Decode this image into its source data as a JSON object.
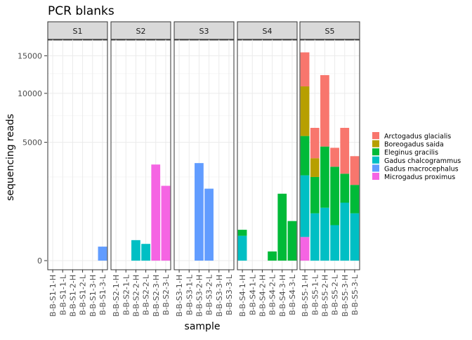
{
  "chart_data": {
    "type": "bar",
    "stacked": true,
    "title": "PCR blanks",
    "xlabel": "sample",
    "ylabel": "sequencing reads",
    "y_scale": "sqrt",
    "ylim": [
      0,
      17500
    ],
    "yticks": [
      0,
      5000,
      10000,
      15000
    ],
    "ytick_labels": [
      "0",
      "5000",
      "10000",
      "15000"
    ],
    "grid": true,
    "legend_position": "right",
    "legend": [
      {
        "name": "Arctogadus glacialis",
        "color": "#F8766D"
      },
      {
        "name": "Boreogadus saida",
        "color": "#B79F00"
      },
      {
        "name": "Eleginus gracilis",
        "color": "#00BA38"
      },
      {
        "name": "Gadus chalcogrammus",
        "color": "#00BFC4"
      },
      {
        "name": "Gadus macrocephalus",
        "color": "#619CFF"
      },
      {
        "name": "Microgadus proximus",
        "color": "#F564E3"
      }
    ],
    "panels": [
      {
        "label": "S1",
        "categories": [
          "B-B-S1-1-H",
          "B-B-S1-1-L",
          "B-B-S1-2-H",
          "B-B-S1-2-L",
          "B-B-S1-3-H",
          "B-B-S1-3-L"
        ],
        "bars": [
          [],
          [],
          [],
          [],
          [],
          [
            {
              "species": "Gadus macrocephalus",
              "value": 70
            }
          ]
        ]
      },
      {
        "label": "S2",
        "categories": [
          "B-B-S2-1-H",
          "B-B-S2-1-L",
          "B-B-S2-2-H",
          "B-B-S2-2-L",
          "B-B-S2-3-H",
          "B-B-S2-3-L"
        ],
        "bars": [
          [],
          [],
          [
            {
              "species": "Gadus chalcogrammus",
              "value": 150
            }
          ],
          [
            {
              "species": "Gadus chalcogrammus",
              "value": 100
            }
          ],
          [
            {
              "species": "Microgadus proximus",
              "value": 3300
            }
          ],
          [
            {
              "species": "Microgadus proximus",
              "value": 2000
            }
          ]
        ]
      },
      {
        "label": "S3",
        "categories": [
          "B-B-S3-1-H",
          "B-B-S3-1-L",
          "B-B-S3-2-H",
          "B-B-S3-2-L",
          "B-B-S3-3-H",
          "B-B-S3-3-L"
        ],
        "bars": [
          [],
          [],
          [
            {
              "species": "Gadus macrocephalus",
              "value": 3400
            }
          ],
          [
            {
              "species": "Gadus macrocephalus",
              "value": 1850
            }
          ],
          [],
          []
        ]
      },
      {
        "label": "S4",
        "categories": [
          "B-B-S4-1-H",
          "B-B-S4-1-L",
          "B-B-S4-2-H",
          "B-B-S4-2-L",
          "B-B-S4-3-H",
          "B-B-S4-3-L"
        ],
        "bars": [
          [
            {
              "species": "Gadus chalcogrammus",
              "value": 220
            },
            {
              "species": "Eleginus gracilis",
              "value": 120
            }
          ],
          [],
          [],
          [
            {
              "species": "Eleginus gracilis",
              "value": 30
            }
          ],
          [
            {
              "species": "Eleginus gracilis",
              "value": 1600
            }
          ],
          [
            {
              "species": "Eleginus gracilis",
              "value": 560
            }
          ]
        ]
      },
      {
        "label": "S5",
        "categories": [
          "B-B-S5-1-H",
          "B-B-S5-1-L",
          "B-B-S5-2-H",
          "B-B-S5-2-L",
          "B-B-S5-3-H",
          "B-B-S5-3-L"
        ],
        "bars": [
          [
            {
              "species": "Microgadus proximus",
              "value": 200
            },
            {
              "species": "Gadus chalcogrammus",
              "value": 2400
            },
            {
              "species": "Eleginus gracilis",
              "value": 2950
            },
            {
              "species": "Boreogadus saida",
              "value": 5300
            },
            {
              "species": "Arctogadus glacialis",
              "value": 4650
            }
          ],
          [
            {
              "species": "Gadus chalcogrammus",
              "value": 800
            },
            {
              "species": "Eleginus gracilis",
              "value": 1700
            },
            {
              "species": "Boreogadus saida",
              "value": 1250
            },
            {
              "species": "Arctogadus glacialis",
              "value": 2550
            }
          ],
          [
            {
              "species": "Gadus chalcogrammus",
              "value": 1000
            },
            {
              "species": "Eleginus gracilis",
              "value": 3650
            },
            {
              "species": "Arctogadus glacialis",
              "value": 7650
            }
          ],
          [
            {
              "species": "Gadus chalcogrammus",
              "value": 450
            },
            {
              "species": "Eleginus gracilis",
              "value": 2700
            },
            {
              "species": "Arctogadus glacialis",
              "value": 1400
            }
          ],
          [
            {
              "species": "Gadus chalcogrammus",
              "value": 1200
            },
            {
              "species": "Eleginus gracilis",
              "value": 1500
            },
            {
              "species": "Arctogadus glacialis",
              "value": 3600
            }
          ],
          [
            {
              "species": "Gadus chalcogrammus",
              "value": 800
            },
            {
              "species": "Eleginus gracilis",
              "value": 1250
            },
            {
              "species": "Arctogadus glacialis",
              "value": 1850
            }
          ]
        ]
      }
    ]
  }
}
